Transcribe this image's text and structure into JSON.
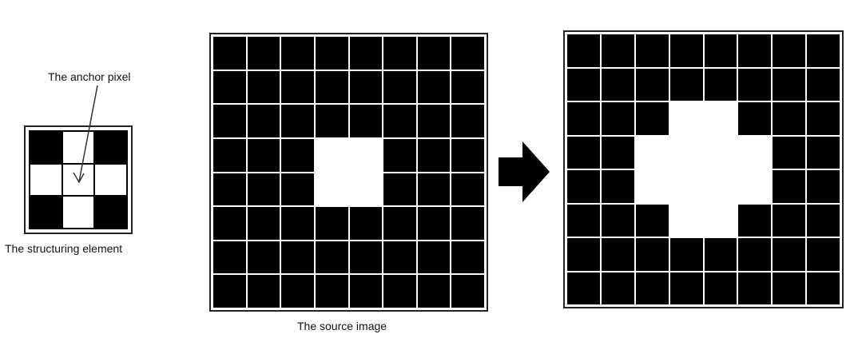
{
  "labels": {
    "anchor": "The anchor pixel",
    "structuring": "The structuring element",
    "source": "The source image"
  },
  "structuring_element": [
    [
      1,
      0,
      1
    ],
    [
      0,
      0,
      0
    ],
    [
      1,
      0,
      1
    ]
  ],
  "source_image": [
    [
      1,
      1,
      1,
      1,
      1,
      1,
      1,
      1
    ],
    [
      1,
      1,
      1,
      1,
      1,
      1,
      1,
      1
    ],
    [
      1,
      1,
      1,
      1,
      1,
      1,
      1,
      1
    ],
    [
      1,
      1,
      1,
      0,
      0,
      1,
      1,
      1
    ],
    [
      1,
      1,
      1,
      0,
      0,
      1,
      1,
      1
    ],
    [
      1,
      1,
      1,
      1,
      1,
      1,
      1,
      1
    ],
    [
      1,
      1,
      1,
      1,
      1,
      1,
      1,
      1
    ],
    [
      1,
      1,
      1,
      1,
      1,
      1,
      1,
      1
    ]
  ],
  "result_image": [
    [
      1,
      1,
      1,
      1,
      1,
      1,
      1,
      1
    ],
    [
      1,
      1,
      1,
      1,
      1,
      1,
      1,
      1
    ],
    [
      1,
      1,
      1,
      0,
      0,
      1,
      1,
      1
    ],
    [
      1,
      1,
      0,
      0,
      0,
      0,
      1,
      1
    ],
    [
      1,
      1,
      0,
      0,
      0,
      0,
      1,
      1
    ],
    [
      1,
      1,
      1,
      0,
      0,
      1,
      1,
      1
    ],
    [
      1,
      1,
      1,
      1,
      1,
      1,
      1,
      1
    ],
    [
      1,
      1,
      1,
      1,
      1,
      1,
      1,
      1
    ]
  ],
  "colors": {
    "on": "#000000",
    "off": "#ffffff"
  }
}
